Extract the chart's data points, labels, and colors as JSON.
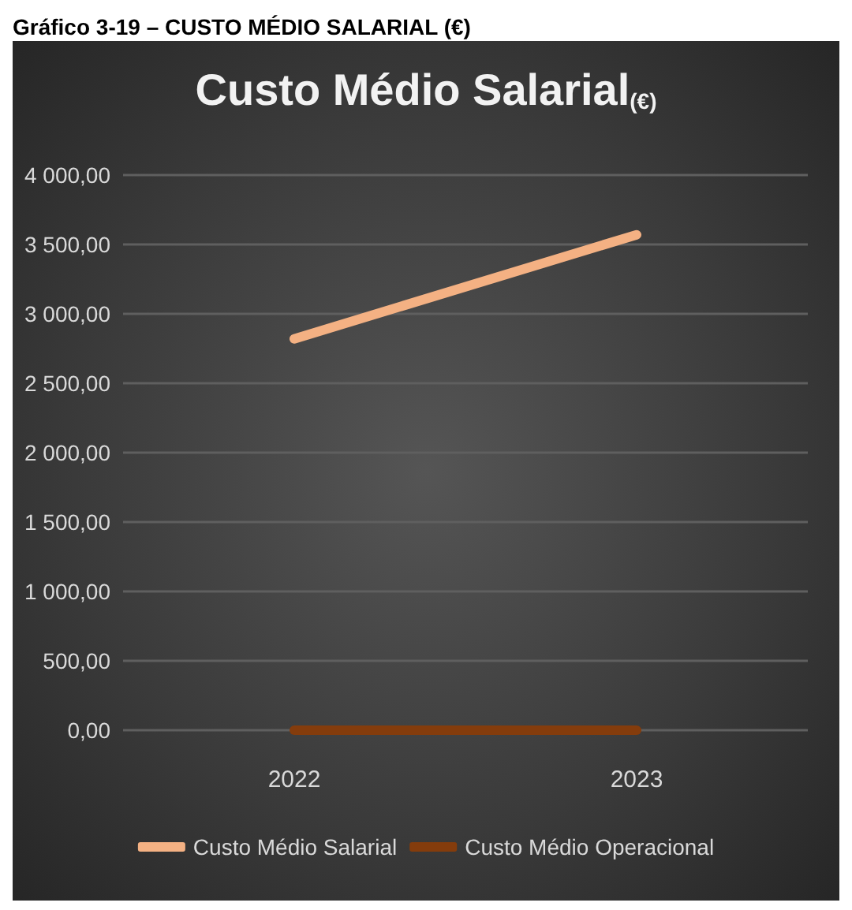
{
  "chart_data": {
    "type": "line",
    "title": "Custo Médio Salarial$_{(€)}$",
    "annotations": [
      "Gráfico 3-19 – CUSTO MÉDIO SALARIAL (€)"
    ],
    "categories": [
      "2022",
      "2023"
    ],
    "series": [
      {
        "name": "Custo Médio Salarial",
        "color": "#f4b183",
        "values": [
          2820,
          3570
        ]
      },
      {
        "name": "Custo Médio Operacional",
        "color": "#843c0c",
        "values": [
          0,
          0
        ]
      }
    ],
    "ylim": [
      0,
      4000
    ],
    "yticks": [
      {
        "value": 0,
        "label": "0,00"
      },
      {
        "value": 500,
        "label": "500,00"
      },
      {
        "value": 1000,
        "label": "1 000,00"
      },
      {
        "value": 1500,
        "label": "1 500,00"
      },
      {
        "value": 2000,
        "label": "2 000,00"
      },
      {
        "value": 2500,
        "label": "2 500,00"
      },
      {
        "value": 3000,
        "label": "3 000,00"
      },
      {
        "value": 3500,
        "label": "3 500,00"
      },
      {
        "value": 4000,
        "label": "4 000,00"
      }
    ],
    "grid": "y",
    "legend": "bottom",
    "marker": "none",
    "line_style": "solid"
  }
}
